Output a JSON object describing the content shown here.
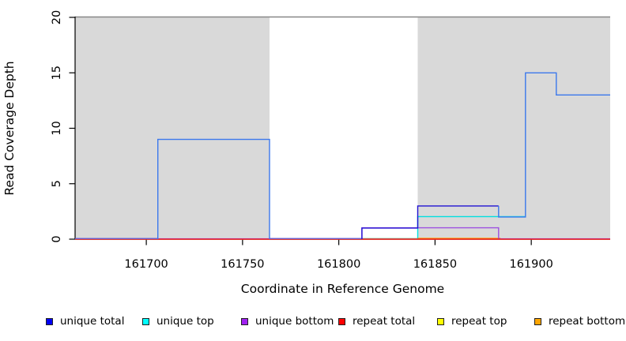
{
  "chart_data": {
    "type": "line",
    "subtype": "step-coverage-plot",
    "title": "",
    "xlabel": "Coordinate in Reference Genome",
    "ylabel": "Read Coverage Depth",
    "xlim": [
      161663,
      161941
    ],
    "ylim": [
      0,
      20
    ],
    "xticks": [
      161700,
      161750,
      161800,
      161850,
      161900
    ],
    "yticks": [
      0,
      5,
      10,
      15,
      20
    ],
    "grid": "off",
    "legend_position": "bottom",
    "shaded_regions": [
      {
        "x1": 161663,
        "x2": 161764,
        "fill": "#d9d9d9"
      },
      {
        "x1": 161841,
        "x2": 161941,
        "fill": "#d9d9d9"
      }
    ],
    "top_border_depth": 20,
    "top_border_color": "#878787",
    "series": [
      {
        "name": "unique total",
        "color": "#0000f5",
        "points": [
          [
            161663,
            0
          ],
          [
            161706,
            0
          ],
          [
            161706,
            9
          ],
          [
            161764,
            9
          ],
          [
            161764,
            0
          ],
          [
            161812,
            0
          ],
          [
            161812,
            1
          ],
          [
            161841,
            1
          ],
          [
            161841,
            3
          ],
          [
            161883,
            3
          ],
          [
            161883,
            2
          ],
          [
            161897,
            2
          ],
          [
            161897,
            15
          ],
          [
            161913,
            15
          ],
          [
            161913,
            13
          ],
          [
            161941,
            13
          ]
        ]
      },
      {
        "name": "unique top",
        "color": "#00ffff",
        "points": [
          [
            161663,
            0
          ],
          [
            161706,
            0
          ],
          [
            161706,
            9
          ],
          [
            161764,
            9
          ],
          [
            161764,
            0
          ],
          [
            161841,
            0
          ],
          [
            161841,
            2
          ],
          [
            161897,
            2
          ],
          [
            161897,
            15
          ],
          [
            161913,
            15
          ],
          [
            161913,
            13
          ],
          [
            161941,
            13
          ]
        ]
      },
      {
        "name": "unique bottom",
        "color": "#a020f0",
        "points": [
          [
            161663,
            0
          ],
          [
            161812,
            0
          ],
          [
            161812,
            1
          ],
          [
            161883,
            1
          ],
          [
            161883,
            0
          ],
          [
            161941,
            0
          ]
        ]
      },
      {
        "name": "repeat total",
        "color": "#ff0000",
        "points": [
          [
            161663,
            0
          ],
          [
            161941,
            0
          ]
        ]
      },
      {
        "name": "repeat top",
        "color": "#ffff00",
        "points": [
          [
            161663,
            0
          ],
          [
            161941,
            0
          ]
        ]
      },
      {
        "name": "repeat bottom",
        "color": "#ffa500",
        "points": [
          [
            161663,
            0
          ],
          [
            161941,
            0
          ]
        ]
      }
    ],
    "render_lines": [
      {
        "name": "repeat-top-line",
        "color": "#ffff00",
        "dy": 0,
        "points": [
          [
            161663,
            0
          ],
          [
            161941,
            0
          ]
        ]
      },
      {
        "name": "unique-top-baseline",
        "color": "#8fce9f",
        "dy": -0.8,
        "points": [
          [
            161812,
            0
          ],
          [
            161841,
            0
          ]
        ]
      },
      {
        "name": "unique-top-step",
        "color": "#00e0e0",
        "dy": -0.5,
        "points": [
          [
            161841,
            0
          ],
          [
            161841,
            2
          ],
          [
            161897,
            2
          ]
        ]
      },
      {
        "name": "repeat-bottom-visible",
        "color": "#ff9d00",
        "dy": -1.0,
        "points": [
          [
            161841,
            0
          ],
          [
            161884,
            0
          ]
        ]
      },
      {
        "name": "unique-bottom-line",
        "color": "#9d4fe0",
        "dy": -0.4,
        "points": [
          [
            161663,
            0
          ],
          [
            161812,
            0
          ],
          [
            161812,
            1
          ],
          [
            161883,
            1
          ],
          [
            161883,
            0
          ],
          [
            161941,
            0
          ]
        ]
      },
      {
        "name": "repeat-total-line",
        "color": "#e8102a",
        "dy": 0,
        "points": [
          [
            161663,
            0
          ],
          [
            161941,
            0
          ]
        ]
      },
      {
        "name": "unique-total-baseline-left",
        "color": "#6363d6",
        "dy": -0.8,
        "points": [
          [
            161663,
            0
          ],
          [
            161706,
            0
          ]
        ]
      },
      {
        "name": "unique-total-peak-9",
        "color": "#3b78ec",
        "dy": 0,
        "points": [
          [
            161706,
            0
          ],
          [
            161706,
            9
          ],
          [
            161764,
            9
          ],
          [
            161764,
            0
          ]
        ]
      },
      {
        "name": "unique-total-baseline-mid",
        "color": "#6363d6",
        "dy": -0.8,
        "points": [
          [
            161764,
            0
          ],
          [
            161812,
            0
          ]
        ]
      },
      {
        "name": "unique-total-low-steps",
        "color": "#2012d2",
        "dy": 0,
        "points": [
          [
            161812,
            0
          ],
          [
            161812,
            1
          ],
          [
            161841,
            1
          ],
          [
            161841,
            3
          ],
          [
            161883,
            3
          ]
        ]
      },
      {
        "name": "unique-total-right-steps",
        "color": "#3b78ec",
        "dy": 0,
        "points": [
          [
            161883,
            3
          ],
          [
            161883,
            2
          ],
          [
            161897,
            2
          ],
          [
            161897,
            15
          ],
          [
            161913,
            15
          ],
          [
            161913,
            13
          ],
          [
            161941,
            13
          ]
        ]
      }
    ],
    "legend": [
      {
        "label": "unique total",
        "color": "#0000f5"
      },
      {
        "label": "unique top",
        "color": "#00ffff"
      },
      {
        "label": "unique bottom",
        "color": "#a020f0"
      },
      {
        "label": "repeat total",
        "color": "#ff0000"
      },
      {
        "label": "repeat top",
        "color": "#ffff00"
      },
      {
        "label": "repeat bottom",
        "color": "#ffa500"
      }
    ]
  },
  "colors": {
    "background": "#ffffff",
    "shaded_region": "#d9d9d9",
    "axis": "#000000",
    "top_border": "#878787"
  }
}
